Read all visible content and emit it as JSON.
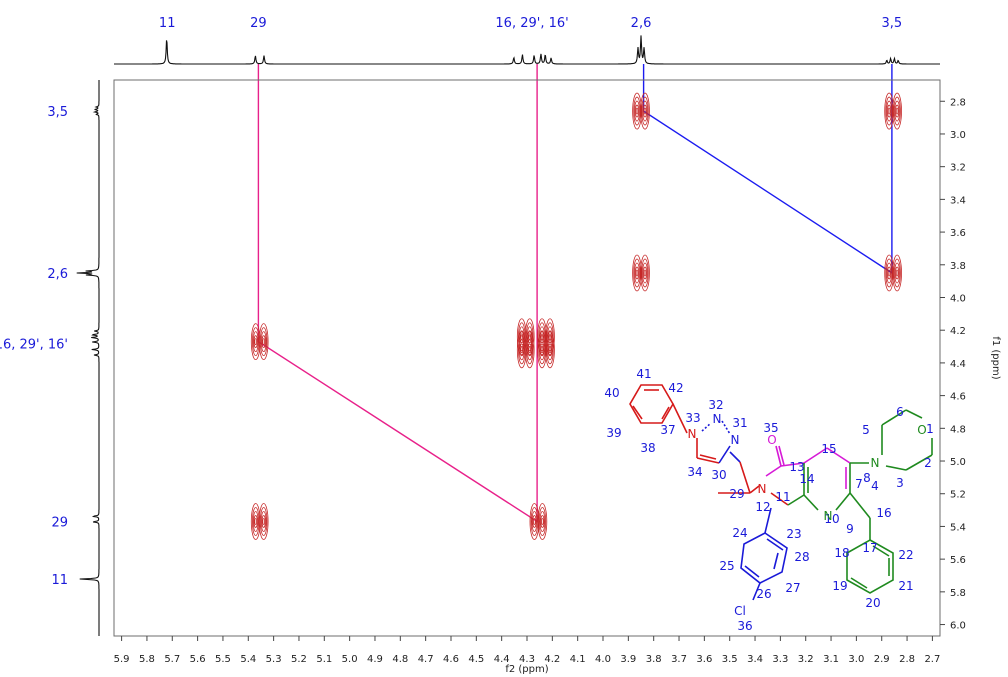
{
  "chart_data": {
    "type": "2d-nmr-cosy",
    "xlabel": "f2 (ppm)",
    "ylabel": "f1 (ppm)",
    "xlim": [
      5.93,
      2.67
    ],
    "ylim": [
      2.67,
      6.07
    ],
    "x_ticks": [
      "5.9",
      "5.8",
      "5.7",
      "5.6",
      "5.5",
      "5.4",
      "5.3",
      "5.2",
      "5.1",
      "5.0",
      "4.9",
      "4.8",
      "4.7",
      "4.6",
      "4.5",
      "4.4",
      "4.3",
      "4.2",
      "4.1",
      "4.0",
      "3.9",
      "3.8",
      "3.7",
      "3.6",
      "3.5",
      "3.4",
      "3.3",
      "3.2",
      "3.1",
      "3.0",
      "2.9",
      "2.8",
      "2.7"
    ],
    "y_ticks": [
      "2.8",
      "3.0",
      "3.2",
      "3.4",
      "3.6",
      "3.8",
      "4.0",
      "4.2",
      "4.4",
      "4.6",
      "4.8",
      "5.0",
      "5.2",
      "5.4",
      "5.6",
      "5.8",
      "6.0"
    ],
    "top_labels": [
      {
        "text": "11",
        "ppm": 5.72
      },
      {
        "text": "29",
        "ppm": 5.36
      },
      {
        "text": "16, 29', 16'",
        "ppm": 4.28
      },
      {
        "text": "2,6",
        "ppm": 3.85
      },
      {
        "text": "3,5",
        "ppm": 2.86
      }
    ],
    "left_labels": [
      {
        "text": "3,5",
        "ppm": 2.86
      },
      {
        "text": "2,6",
        "ppm": 3.85
      },
      {
        "text": "16, 29', 16'",
        "ppm": 4.28
      },
      {
        "text": "29",
        "ppm": 5.37
      },
      {
        "text": "11",
        "ppm": 5.72
      }
    ],
    "top_spectrum_peaks": [
      {
        "ppm": 5.722,
        "h": 1.0
      },
      {
        "ppm": 5.372,
        "h": 0.32
      },
      {
        "ppm": 5.338,
        "h": 0.32
      },
      {
        "ppm": 4.352,
        "h": 0.25
      },
      {
        "ppm": 4.318,
        "h": 0.36
      },
      {
        "ppm": 4.272,
        "h": 0.33
      },
      {
        "ppm": 4.245,
        "h": 0.38
      },
      {
        "ppm": 4.228,
        "h": 0.36
      },
      {
        "ppm": 4.205,
        "h": 0.23
      },
      {
        "ppm": 3.862,
        "h": 0.6
      },
      {
        "ppm": 3.85,
        "h": 1.05
      },
      {
        "ppm": 3.838,
        "h": 0.6
      },
      {
        "ppm": 2.88,
        "h": 0.14
      },
      {
        "ppm": 2.865,
        "h": 0.21
      },
      {
        "ppm": 2.85,
        "h": 0.21
      },
      {
        "ppm": 2.835,
        "h": 0.14
      }
    ],
    "cross_peaks": [
      {
        "x": 2.855,
        "y": 2.86
      },
      {
        "x": 2.855,
        "y": 3.85
      },
      {
        "x": 3.85,
        "y": 2.86
      },
      {
        "x": 3.85,
        "y": 3.85
      },
      {
        "x": 5.355,
        "y": 4.27
      },
      {
        "x": 5.355,
        "y": 5.37
      },
      {
        "x": 4.305,
        "y": 4.24
      },
      {
        "x": 4.305,
        "y": 4.32
      },
      {
        "x": 4.225,
        "y": 4.24
      },
      {
        "x": 4.225,
        "y": 4.32
      },
      {
        "x": 4.255,
        "y": 5.37
      }
    ],
    "correlations": [
      {
        "color": "#1c1cf0",
        "path": [
          [
            3.84,
            2.64
          ],
          [
            3.84,
            2.86
          ],
          [
            2.86,
            3.85
          ],
          [
            2.86,
            2.64
          ]
        ]
      },
      {
        "color": "#e8218a",
        "path": [
          [
            5.36,
            2.64
          ],
          [
            5.36,
            4.27
          ],
          [
            4.26,
            5.37
          ],
          [
            4.26,
            2.64
          ]
        ]
      }
    ],
    "colors": {
      "contour": "#c62828",
      "blue_line": "#1c1cf0",
      "pink_line": "#e8218a"
    }
  },
  "structure": {
    "atoms": [
      {
        "text": "41",
        "color": "#1a1ad8"
      },
      {
        "text": "42",
        "color": "#1a1ad8"
      },
      {
        "text": "40",
        "color": "#1a1ad8"
      },
      {
        "text": "39",
        "color": "#1a1ad8"
      },
      {
        "text": "38",
        "color": "#1a1ad8"
      },
      {
        "text": "37",
        "color": "#1a1ad8"
      },
      {
        "text": "33",
        "color": "#1a1ad8"
      },
      {
        "text": "32",
        "color": "#1a1ad8"
      },
      {
        "text": "31",
        "color": "#1a1ad8"
      },
      {
        "text": "30",
        "color": "#1a1ad8"
      },
      {
        "text": "34",
        "color": "#1a1ad8"
      },
      {
        "text": "29",
        "color": "#1a1ad8"
      },
      {
        "text": "35",
        "color": "#1a1ad8"
      },
      {
        "text": "13",
        "color": "#1a1ad8"
      },
      {
        "text": "12",
        "color": "#1a1ad8"
      },
      {
        "text": "11",
        "color": "#1a1ad8"
      },
      {
        "text": "14",
        "color": "#1a1ad8"
      },
      {
        "text": "15",
        "color": "#1a1ad8"
      },
      {
        "text": "10",
        "color": "#1a1ad8"
      },
      {
        "text": "7",
        "color": "#1a1ad8"
      },
      {
        "text": "8",
        "color": "#1a1ad8"
      },
      {
        "text": "9",
        "color": "#1a1ad8"
      },
      {
        "text": "16",
        "color": "#1a1ad8"
      },
      {
        "text": "4",
        "color": "#1a1ad8"
      },
      {
        "text": "5",
        "color": "#1a1ad8"
      },
      {
        "text": "6",
        "color": "#1a1ad8"
      },
      {
        "text": "1",
        "color": "#1a1ad8"
      },
      {
        "text": "2",
        "color": "#1a1ad8"
      },
      {
        "text": "3",
        "color": "#1a1ad8"
      },
      {
        "text": "17",
        "color": "#1a1ad8"
      },
      {
        "text": "18",
        "color": "#1a1ad8"
      },
      {
        "text": "22",
        "color": "#1a1ad8"
      },
      {
        "text": "19",
        "color": "#1a1ad8"
      },
      {
        "text": "21",
        "color": "#1a1ad8"
      },
      {
        "text": "20",
        "color": "#1a1ad8"
      },
      {
        "text": "23",
        "color": "#1a1ad8"
      },
      {
        "text": "24",
        "color": "#1a1ad8"
      },
      {
        "text": "28",
        "color": "#1a1ad8"
      },
      {
        "text": "25",
        "color": "#1a1ad8"
      },
      {
        "text": "27",
        "color": "#1a1ad8"
      },
      {
        "text": "26",
        "color": "#1a1ad8"
      },
      {
        "text": "36",
        "color": "#1a1ad8"
      }
    ],
    "elements": [
      {
        "text": "N",
        "color": "#d61a1a"
      },
      {
        "text": "N",
        "color": "#1a1ad8"
      },
      {
        "text": "N",
        "color": "#1a1ad8"
      },
      {
        "text": "O",
        "color": "#d61ad6"
      },
      {
        "text": "N",
        "color": "#d61a1a"
      },
      {
        "text": "N",
        "color": "#1f8a1f"
      },
      {
        "text": "N",
        "color": "#1f8a1f"
      },
      {
        "text": "O",
        "color": "#1f8a1f"
      },
      {
        "text": "Cl",
        "color": "#1a1ad8"
      }
    ]
  }
}
